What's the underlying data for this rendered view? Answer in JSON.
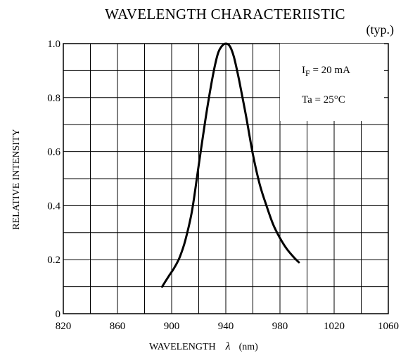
{
  "chart_data": {
    "type": "line",
    "title": "WAVELENGTH CHARACTERIISTIC",
    "subtitle": "(typ.)",
    "xlabel": "WAVELENGTH",
    "xlabel_symbol": "λ",
    "xlabel_unit": "(nm)",
    "ylabel": "RELATIVE INTENSITY",
    "xlim": [
      820,
      1060
    ],
    "ylim": [
      0,
      1.0
    ],
    "x_ticks": [
      820,
      860,
      900,
      940,
      980,
      1020,
      1060
    ],
    "y_ticks": [
      0,
      0.2,
      0.4,
      0.6,
      0.8,
      1.0
    ],
    "y_tick_labels": [
      "0",
      "0.2",
      "0.4",
      "0.6",
      "0.8",
      "1.0"
    ],
    "grid": true,
    "annotations": {
      "if_label": "I",
      "if_sub": "F",
      "if_value": " = 20 mA",
      "ta": "Ta = 25°C"
    },
    "series": [
      {
        "x": [
          893,
          898,
          902,
          906,
          910,
          915,
          920,
          925,
          930,
          934,
          937,
          940,
          943,
          946,
          950,
          955,
          960,
          965,
          970,
          975,
          980,
          985,
          990,
          994
        ],
        "values": [
          0.1,
          0.14,
          0.17,
          0.21,
          0.27,
          0.38,
          0.55,
          0.72,
          0.87,
          0.96,
          0.99,
          1.0,
          0.99,
          0.95,
          0.86,
          0.73,
          0.59,
          0.48,
          0.4,
          0.33,
          0.28,
          0.24,
          0.21,
          0.19
        ]
      }
    ]
  }
}
